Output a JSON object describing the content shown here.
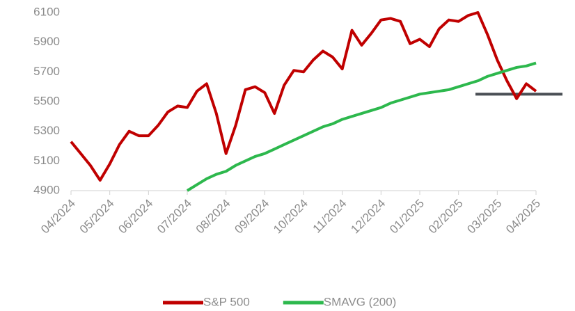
{
  "chart_data": {
    "type": "line",
    "x": [
      "04/2024",
      null,
      null,
      null,
      "05/2024",
      null,
      null,
      null,
      "06/2024",
      null,
      null,
      null,
      "07/2024",
      null,
      null,
      null,
      "08/2024",
      null,
      null,
      null,
      "09/2024",
      null,
      null,
      null,
      "10/2024",
      null,
      null,
      null,
      "11/2024",
      null,
      null,
      null,
      "12/2024",
      null,
      null,
      null,
      "01/2025",
      null,
      null,
      null,
      "02/2025",
      null,
      null,
      null,
      "03/2025",
      null,
      null,
      null,
      "04/2025"
    ],
    "series": [
      {
        "name": "S&P 500",
        "color": "#c00000",
        "values": [
          5230,
          5150,
          5070,
          4970,
          5080,
          5210,
          5300,
          5270,
          5270,
          5340,
          5430,
          5470,
          5460,
          5570,
          5620,
          5420,
          5150,
          5340,
          5580,
          5600,
          5560,
          5420,
          5610,
          5710,
          5700,
          5780,
          5840,
          5800,
          5720,
          5980,
          5880,
          5960,
          6050,
          6060,
          6040,
          5890,
          5920,
          5870,
          5990,
          6050,
          6040,
          6080,
          6100,
          5950,
          5780,
          5640,
          5520,
          5620,
          5570
        ]
      },
      {
        "name": "SMAVG (200)",
        "color": "#2db84d",
        "values": [
          null,
          null,
          null,
          null,
          null,
          null,
          null,
          null,
          null,
          null,
          null,
          null,
          4900,
          4940,
          4980,
          5010,
          5030,
          5070,
          5100,
          5130,
          5150,
          5180,
          5210,
          5240,
          5270,
          5300,
          5330,
          5350,
          5380,
          5400,
          5420,
          5440,
          5460,
          5490,
          5510,
          5530,
          5550,
          5560,
          5570,
          5580,
          5600,
          5620,
          5640,
          5670,
          5690,
          5710,
          5730,
          5740,
          5760
        ]
      }
    ],
    "reference_line": {
      "value": 5550,
      "color": "#4a4f55"
    },
    "ylim": [
      4900,
      6100
    ],
    "yticks": [
      4900,
      5100,
      5300,
      5500,
      5700,
      5900,
      6100
    ],
    "grid": false,
    "legend": "bottom"
  }
}
